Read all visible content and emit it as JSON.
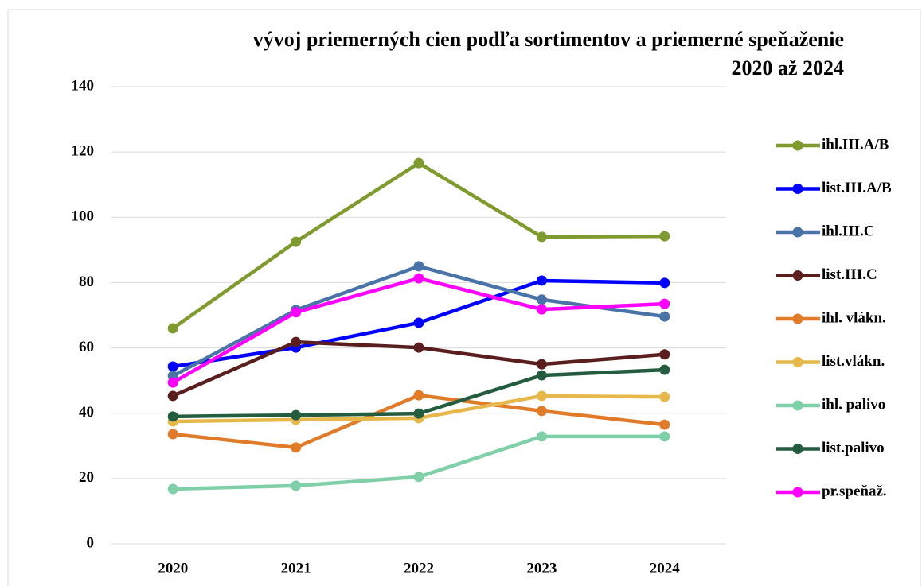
{
  "chart_data": {
    "type": "line",
    "title": [
      "vývoj priemerných cien podľa sortimentov a priemerné speňaženie",
      "2020 až 2024"
    ],
    "categories": [
      "2020",
      "2021",
      "2022",
      "2023",
      "2024"
    ],
    "ylim": [
      0,
      140
    ],
    "yticks": [
      0,
      20,
      40,
      60,
      80,
      100,
      120,
      140
    ],
    "grid": true,
    "legend": "right",
    "series": [
      {
        "name": "ihl.III.A/B",
        "color": "#7f9a2e",
        "values": [
          66,
          92.5,
          116.6,
          94,
          94.2
        ]
      },
      {
        "name": "list.III.A/B",
        "color": "#0000ff",
        "values": [
          54.3,
          60.1,
          67.7,
          80.6,
          79.9
        ]
      },
      {
        "name": "ihl.III.C",
        "color": "#4a74a8",
        "values": [
          51.4,
          71.6,
          85,
          74.8,
          69.6
        ]
      },
      {
        "name": "list.III.C",
        "color": "#5a1e1e",
        "values": [
          45.3,
          61.8,
          60.1,
          55,
          58
        ]
      },
      {
        "name": "ihl. vlákn.",
        "color": "#e07b2a",
        "values": [
          33.6,
          29.5,
          45.5,
          40.7,
          36.5
        ]
      },
      {
        "name": "list.vlákn.",
        "color": "#e6b84a",
        "values": [
          37.5,
          38,
          38.5,
          45.3,
          45
        ]
      },
      {
        "name": "ihl. palivo",
        "color": "#7fcfa8",
        "values": [
          16.8,
          17.8,
          20.5,
          32.9,
          32.9
        ]
      },
      {
        "name": "list.palivo",
        "color": "#235c3e",
        "values": [
          39,
          39.4,
          39.9,
          51.6,
          53.3
        ]
      },
      {
        "name": "pr.speňaž.",
        "color": "#ff00ff",
        "values": [
          49.4,
          70.9,
          81.3,
          71.8,
          73.5
        ]
      }
    ]
  }
}
